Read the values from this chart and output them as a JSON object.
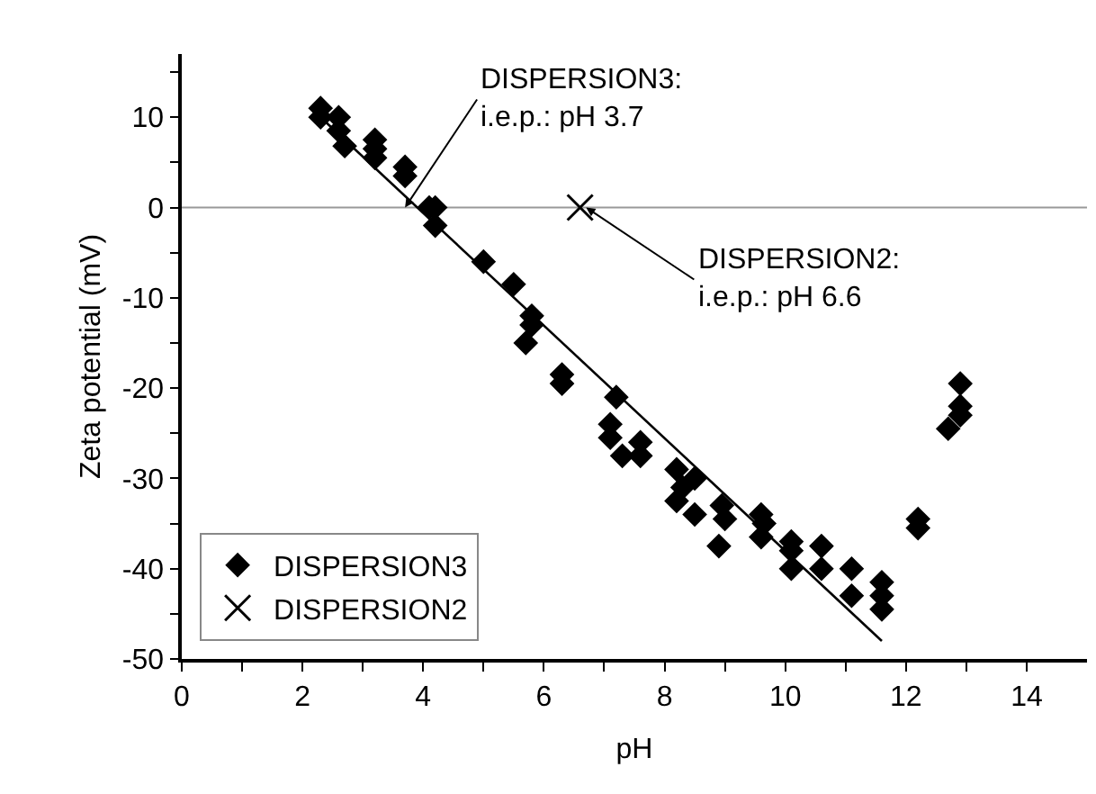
{
  "chart_data": {
    "type": "scatter",
    "xlabel": "pH",
    "ylabel": "Zeta potential (mV)",
    "xlim": [
      0,
      15
    ],
    "ylim": [
      -50,
      17
    ],
    "xticks": [
      0,
      {
        "value": 1,
        "label": null
      },
      2,
      {
        "value": 3,
        "label": null
      },
      4,
      {
        "value": 5,
        "label": null
      },
      6,
      {
        "value": 7,
        "label": null
      },
      8,
      {
        "value": 9,
        "label": null
      },
      10,
      {
        "value": 11,
        "label": null
      },
      12,
      {
        "value": 13,
        "label": null
      },
      14
    ],
    "yticks": [
      -50,
      {
        "value": -45,
        "label": null
      },
      -40,
      {
        "value": -35,
        "label": null
      },
      -30,
      {
        "value": -25,
        "label": null
      },
      -20,
      {
        "value": -15,
        "label": null
      },
      -10,
      {
        "value": -5,
        "label": null
      },
      0,
      {
        "value": 5,
        "label": null
      },
      10,
      {
        "value": 15,
        "label": null
      }
    ],
    "grid": false,
    "legend": "bottom left",
    "series": [
      {
        "name": "DISPERSION3",
        "color": "#000000",
        "marker": "diamond",
        "x": [
          2.3,
          2.3,
          2.6,
          2.6,
          2.7,
          3.2,
          3.2,
          3.2,
          3.7,
          3.7,
          4.1,
          4.2,
          4.2,
          5.0,
          5.5,
          5.8,
          5.8,
          5.7,
          6.3,
          6.3,
          7.2,
          7.1,
          7.1,
          7.3,
          7.6,
          7.6,
          8.2,
          8.3,
          8.2,
          8.5,
          8.5,
          8.95,
          9.0,
          8.9,
          9.6,
          9.65,
          9.6,
          10.1,
          10.1,
          10.1,
          10.6,
          10.6,
          11.1,
          11.1,
          11.6,
          11.6,
          11.6,
          12.2,
          12.2,
          12.7,
          12.9,
          12.9,
          12.9
        ],
        "values": [
          11,
          10,
          10,
          8.5,
          6.8,
          7.5,
          6.5,
          5.5,
          4.5,
          3.5,
          0,
          0,
          -2,
          -6,
          -8.5,
          -12,
          -13,
          -15,
          -18.5,
          -19.5,
          -21,
          -24,
          -25.5,
          -27.5,
          -26,
          -27.5,
          -29,
          -31,
          -32.5,
          -30,
          -34,
          -33,
          -34.5,
          -37.5,
          -34,
          -35,
          -36.5,
          -37,
          -38,
          -40,
          -40,
          -37.5,
          -40,
          -43,
          -41.5,
          -43,
          -44.5,
          -34.5,
          -35.5,
          -24.5,
          -23,
          -22,
          -19.5
        ]
      },
      {
        "name": "DISPERSION2",
        "color": "#000000",
        "marker": "cross",
        "x": [
          6.6
        ],
        "values": [
          0
        ]
      },
      {
        "type": "line",
        "color": "#000000",
        "marker": "none",
        "x": [
          2.3,
          11.6
        ],
        "values": [
          10,
          -48
        ]
      }
    ],
    "ref_lines": [
      {
        "axis": "y",
        "value": 0,
        "color": "#999999"
      }
    ],
    "annotations": [
      {
        "text": "DISPERSION3:\ni.e.p.: pH 3.7",
        "x": 3.7,
        "y": 0
      },
      {
        "text": "DISPERSION2:\ni.e.p.: pH 6.6",
        "x": 6.7,
        "y": 0
      }
    ]
  }
}
